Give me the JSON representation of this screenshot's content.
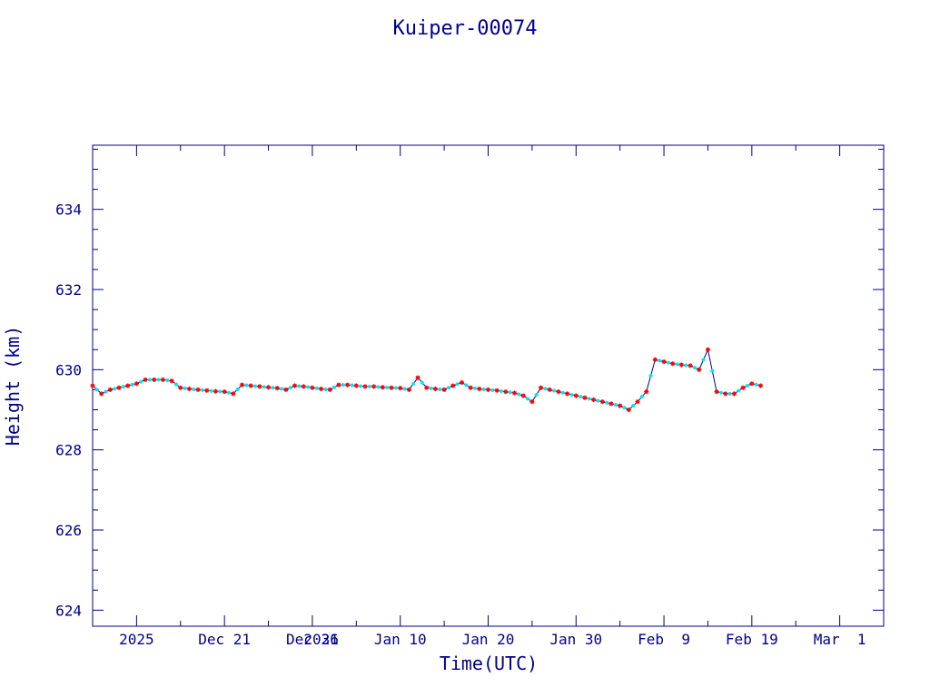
{
  "chart_data": {
    "type": "line",
    "title": "Kuiper-00074",
    "xlabel": "Time(UTC)",
    "ylabel": "Height (km)",
    "xlim": [
      "2025-12-06",
      "2026-03-06"
    ],
    "ylim": [
      623.6,
      635.6
    ],
    "x_ticks": [
      {
        "date": "2025-12-11",
        "label": "2025"
      },
      {
        "date": "2025-12-21",
        "label": "Dec 21"
      },
      {
        "date": "2025-12-31",
        "label": "Dec 31"
      },
      {
        "date": "2026-01-01",
        "label": "2026"
      },
      {
        "date": "2026-01-10",
        "label": "Jan 10"
      },
      {
        "date": "2026-01-20",
        "label": "Jan 20"
      },
      {
        "date": "2026-01-30",
        "label": "Jan 30"
      },
      {
        "date": "2026-02-09",
        "label": "Feb  9"
      },
      {
        "date": "2026-02-19",
        "label": "Feb 19"
      },
      {
        "date": "2026-03-01",
        "label": "Mar  1"
      }
    ],
    "y_ticks": [
      624,
      626,
      628,
      630,
      632,
      634
    ],
    "grid": false,
    "series": [
      {
        "color": "#00008b",
        "marker_color": "#ff0000",
        "alt_marker_color": "#00e5ff",
        "points": [
          [
            "2025-12-06",
            629.6
          ],
          [
            "2025-12-07",
            629.4
          ],
          [
            "2025-12-08",
            629.5
          ],
          [
            "2025-12-09",
            629.55
          ],
          [
            "2025-12-10",
            629.6
          ],
          [
            "2025-12-11",
            629.65
          ],
          [
            "2025-12-12",
            629.75
          ],
          [
            "2025-12-13",
            629.75
          ],
          [
            "2025-12-14",
            629.75
          ],
          [
            "2025-12-15",
            629.72
          ],
          [
            "2025-12-16",
            629.55
          ],
          [
            "2025-12-17",
            629.52
          ],
          [
            "2025-12-18",
            629.5
          ],
          [
            "2025-12-19",
            629.48
          ],
          [
            "2025-12-20",
            629.46
          ],
          [
            "2025-12-21",
            629.45
          ],
          [
            "2025-12-22",
            629.4
          ],
          [
            "2025-12-23",
            629.62
          ],
          [
            "2025-12-24",
            629.6
          ],
          [
            "2025-12-25",
            629.58
          ],
          [
            "2025-12-26",
            629.56
          ],
          [
            "2025-12-27",
            629.54
          ],
          [
            "2025-12-28",
            629.5
          ],
          [
            "2025-12-29",
            629.6
          ],
          [
            "2025-12-30",
            629.58
          ],
          [
            "2025-12-31",
            629.55
          ],
          [
            "2026-01-01",
            629.52
          ],
          [
            "2026-01-02",
            629.5
          ],
          [
            "2026-01-03",
            629.62
          ],
          [
            "2026-01-04",
            629.62
          ],
          [
            "2026-01-05",
            629.6
          ],
          [
            "2026-01-06",
            629.58
          ],
          [
            "2026-01-07",
            629.58
          ],
          [
            "2026-01-08",
            629.56
          ],
          [
            "2026-01-09",
            629.55
          ],
          [
            "2026-01-10",
            629.54
          ],
          [
            "2026-01-11",
            629.5
          ],
          [
            "2026-01-12",
            629.8
          ],
          [
            "2026-01-13",
            629.55
          ],
          [
            "2026-01-14",
            629.52
          ],
          [
            "2026-01-15",
            629.5
          ],
          [
            "2026-01-16",
            629.6
          ],
          [
            "2026-01-17",
            629.68
          ],
          [
            "2026-01-18",
            629.55
          ],
          [
            "2026-01-19",
            629.52
          ],
          [
            "2026-01-20",
            629.5
          ],
          [
            "2026-01-21",
            629.48
          ],
          [
            "2026-01-22",
            629.45
          ],
          [
            "2026-01-23",
            629.42
          ],
          [
            "2026-01-24",
            629.35
          ],
          [
            "2026-01-25",
            629.2
          ],
          [
            "2026-01-26",
            629.55
          ],
          [
            "2026-01-27",
            629.5
          ],
          [
            "2026-01-28",
            629.45
          ],
          [
            "2026-01-29",
            629.4
          ],
          [
            "2026-01-30",
            629.35
          ],
          [
            "2026-01-31",
            629.3
          ],
          [
            "2026-02-01",
            629.25
          ],
          [
            "2026-02-02",
            629.2
          ],
          [
            "2026-02-03",
            629.15
          ],
          [
            "2026-02-04",
            629.1
          ],
          [
            "2026-02-05",
            629.0
          ],
          [
            "2026-02-06",
            629.2
          ],
          [
            "2026-02-07",
            629.45
          ],
          [
            "2026-02-08",
            630.25
          ],
          [
            "2026-02-09",
            630.2
          ],
          [
            "2026-02-10",
            630.15
          ],
          [
            "2026-02-11",
            630.12
          ],
          [
            "2026-02-12",
            630.1
          ],
          [
            "2026-02-13",
            630.0
          ],
          [
            "2026-02-14",
            630.5
          ],
          [
            "2026-02-15",
            629.45
          ],
          [
            "2026-02-16",
            629.4
          ],
          [
            "2026-02-17",
            629.4
          ],
          [
            "2026-02-18",
            629.55
          ],
          [
            "2026-02-19",
            629.65
          ],
          [
            "2026-02-20",
            629.6
          ]
        ]
      }
    ]
  }
}
